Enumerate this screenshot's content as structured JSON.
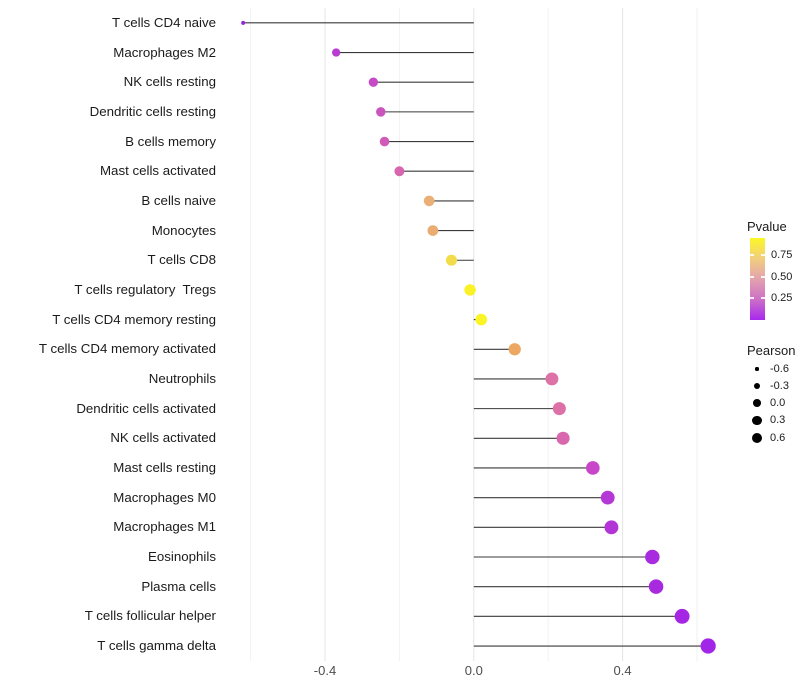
{
  "chart_data": {
    "type": "scatter",
    "variant": "horizontal-lollipop",
    "title": "",
    "xlabel": "",
    "ylabel": "",
    "xlim": [
      -0.68,
      0.7
    ],
    "baseline_x": 0,
    "x_tick_labels": [
      "-0.4",
      "0.0",
      "0.4"
    ],
    "x_tick_values": [
      -0.4,
      0.0,
      0.4
    ],
    "minor_grid_x": [
      -0.6,
      -0.2,
      0.2,
      0.6
    ],
    "grid": "vertical-only",
    "points": [
      {
        "label": "T cells CD4 naive",
        "pearson": -0.62,
        "pvalue": 0.02,
        "color": "#9329E2"
      },
      {
        "label": "Macrophages M2",
        "pearson": -0.37,
        "pvalue": 0.1,
        "color": "#B83CD2"
      },
      {
        "label": "NK cells resting",
        "pearson": -0.27,
        "pvalue": 0.17,
        "color": "#C44AC6"
      },
      {
        "label": "Dendritic cells resting",
        "pearson": -0.25,
        "pvalue": 0.2,
        "color": "#CA53BE"
      },
      {
        "label": "B cells memory",
        "pearson": -0.24,
        "pvalue": 0.22,
        "color": "#D05CB7"
      },
      {
        "label": "Mast cells activated",
        "pearson": -0.2,
        "pvalue": 0.26,
        "color": "#D766AE"
      },
      {
        "label": "B cells naive",
        "pearson": -0.12,
        "pvalue": 0.62,
        "color": "#EAAE77"
      },
      {
        "label": "Monocytes",
        "pearson": -0.11,
        "pvalue": 0.63,
        "color": "#EAAC73"
      },
      {
        "label": "T cells CD8",
        "pearson": -0.06,
        "pvalue": 0.8,
        "color": "#F2DC49"
      },
      {
        "label": "T cells regulatory  Tregs",
        "pearson": -0.01,
        "pvalue": 0.92,
        "color": "#FAF226"
      },
      {
        "label": "T cells CD4 memory resting",
        "pearson": 0.02,
        "pvalue": 0.94,
        "color": "#FBF525"
      },
      {
        "label": "T cells CD4 memory activated",
        "pearson": 0.11,
        "pvalue": 0.66,
        "color": "#ECA862"
      },
      {
        "label": "Neutrophils",
        "pearson": 0.21,
        "pvalue": 0.31,
        "color": "#DD72A6"
      },
      {
        "label": "Dendritic cells activated",
        "pearson": 0.23,
        "pvalue": 0.3,
        "color": "#DC70A7"
      },
      {
        "label": "NK cells activated",
        "pearson": 0.24,
        "pvalue": 0.28,
        "color": "#D967AD"
      },
      {
        "label": "Mast cells resting",
        "pearson": 0.32,
        "pvalue": 0.16,
        "color": "#C746C9"
      },
      {
        "label": "Macrophages M0",
        "pearson": 0.36,
        "pvalue": 0.1,
        "color": "#B537D5"
      },
      {
        "label": "Macrophages M1",
        "pearson": 0.37,
        "pvalue": 0.09,
        "color": "#B334D7"
      },
      {
        "label": "Eosinophils",
        "pearson": 0.48,
        "pvalue": 0.05,
        "color": "#A92BDF"
      },
      {
        "label": "Plasma cells",
        "pearson": 0.49,
        "pvalue": 0.045,
        "color": "#A82ADF"
      },
      {
        "label": "T cells follicular helper",
        "pearson": 0.56,
        "pvalue": 0.03,
        "color": "#A527E4"
      },
      {
        "label": "T cells gamma delta",
        "pearson": 0.63,
        "pvalue": 0.015,
        "color": "#A226E7"
      }
    ],
    "legend_pvalue": {
      "title": "Pvalue",
      "tick_labels": [
        "0.75",
        "0.50",
        "0.25"
      ],
      "tick_values": [
        0.75,
        0.5,
        0.25
      ],
      "range": [
        0.0,
        0.95
      ],
      "gradient_top_to_bottom": [
        "#FBF724",
        "#F2CE7E",
        "#E3A2AE",
        "#CC70C6",
        "#A828EE"
      ]
    },
    "legend_pearson": {
      "title": "Pearson",
      "items": [
        {
          "label": "-0.6",
          "value": -0.6
        },
        {
          "label": "-0.3",
          "value": -0.3
        },
        {
          "label": "0.0",
          "value": 0.0
        },
        {
          "label": "0.3",
          "value": 0.3
        },
        {
          "label": "0.6",
          "value": 0.6
        }
      ],
      "key_color": "#000000"
    },
    "stem_color": "#3a3a3a",
    "major_grid_color": "#e4e4e4",
    "minor_grid_color": "#f2f2f2"
  }
}
